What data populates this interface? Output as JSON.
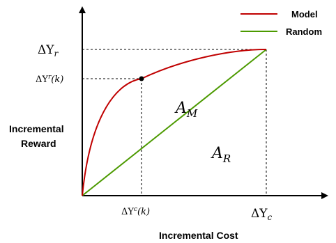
{
  "legend": {
    "model_label": "Model",
    "random_label": "Random",
    "model_color": "#c00000",
    "random_color": "#4c9a00"
  },
  "axes": {
    "x_title": "Incremental Cost",
    "y_title_line1": "Incremental",
    "y_title_line2": "Reward"
  },
  "tick_labels": {
    "delta_yr_delta": "ΔY",
    "delta_yr_sub": "r",
    "delta_yrk_delta": "ΔY",
    "delta_yrk_sup": "r",
    "delta_yrk_arg": "(k)",
    "delta_yck_delta": "ΔY",
    "delta_yck_sup": "c",
    "delta_yck_arg": "(k)",
    "delta_yc_delta": "ΔY",
    "delta_yc_sub": "c"
  },
  "area_labels": {
    "am_main": "A",
    "am_sub": "M",
    "ar_main": "A",
    "ar_sub": "R"
  }
}
